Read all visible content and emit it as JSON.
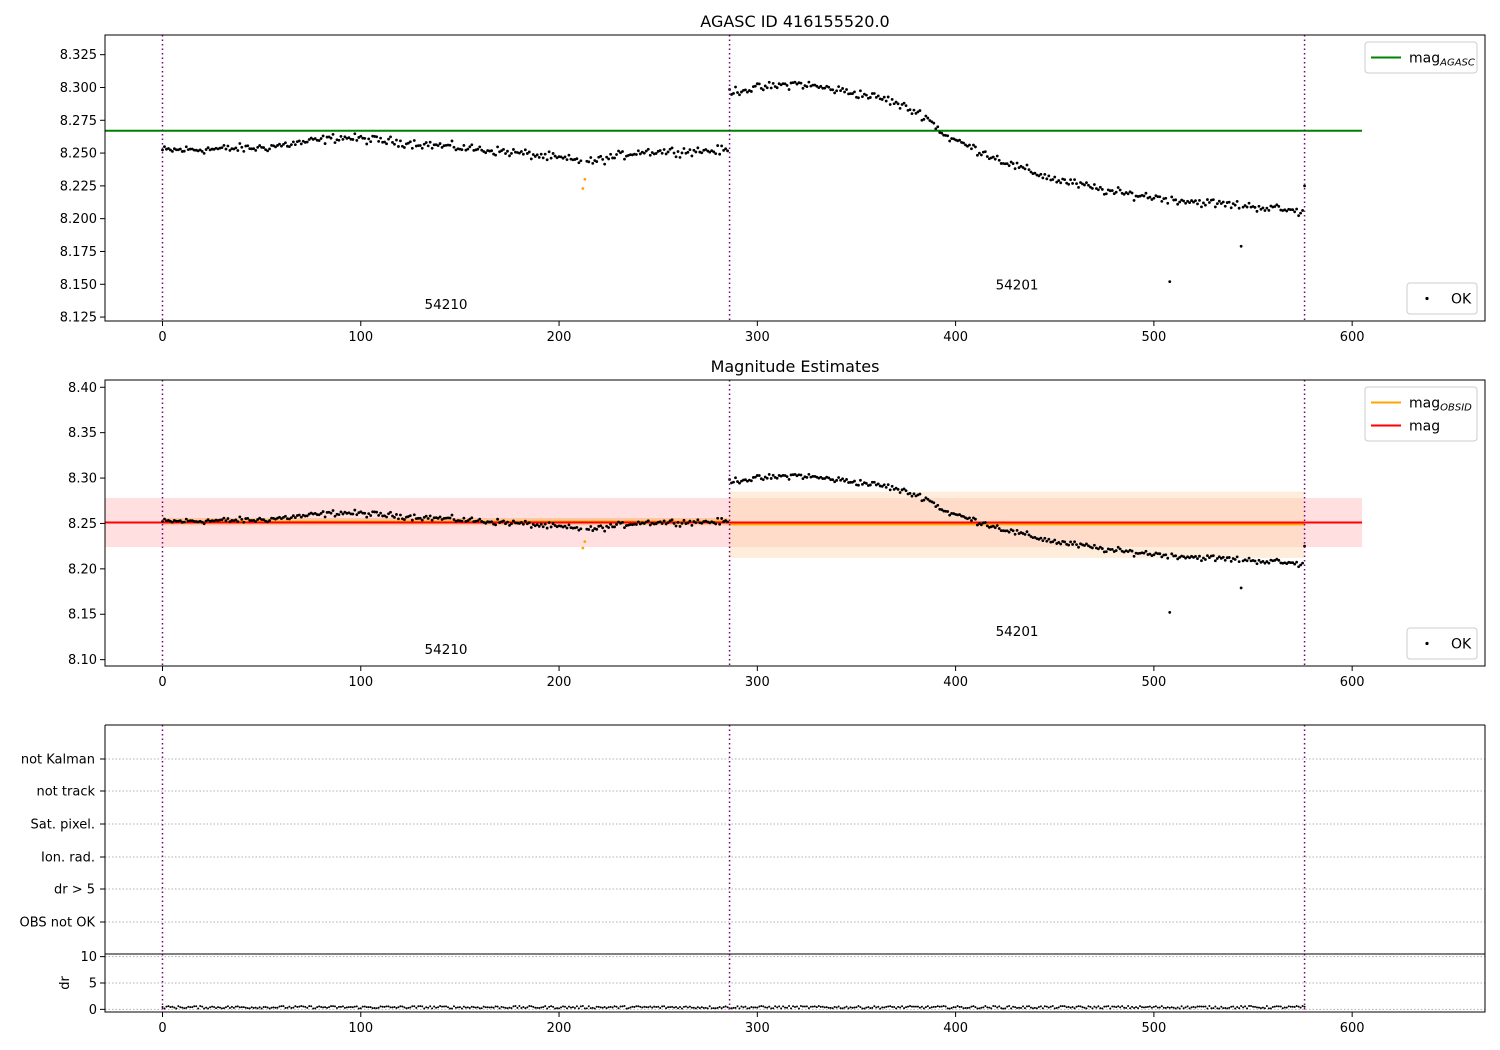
{
  "chart_data": [
    {
      "type": "scatter",
      "title": "AGASC ID 416155520.0",
      "xlabel": "",
      "ylabel": "",
      "xlim": [
        -29,
        667
      ],
      "ylim": [
        8.122,
        8.34
      ],
      "xticks": [
        0,
        100,
        200,
        300,
        400,
        500,
        600
      ],
      "yticks": [
        8.125,
        8.15,
        8.175,
        8.2,
        8.225,
        8.25,
        8.275,
        8.3,
        8.325
      ],
      "ytick_labels": [
        "8.125",
        "8.150",
        "8.175",
        "8.200",
        "8.225",
        "8.250",
        "8.275",
        "8.300",
        "8.325"
      ],
      "obs_boundaries": [
        0,
        286,
        576
      ],
      "annotations": [
        {
          "text": "54210",
          "x": 143,
          "y": 8.131
        },
        {
          "text": "54201",
          "x": 431,
          "y": 8.146
        }
      ],
      "hlines": [
        {
          "name": "mag",
          "subscript": "AGASC",
          "y": 8.267,
          "x0": -29,
          "x1": 605,
          "color": "#008000"
        }
      ],
      "outliers": [
        {
          "x": 212,
          "y": 8.223
        },
        {
          "x": 213,
          "y": 8.23
        },
        {
          "x": 544,
          "y": 8.179
        },
        {
          "x": 508,
          "y": 8.152
        },
        {
          "x": 576,
          "y": 8.225
        }
      ],
      "outlier_color": "#ffa500",
      "outlier_xs": [
        212,
        213
      ],
      "series_segments": [
        {
          "x_start": 0,
          "x_end": 285,
          "y_profile": [
            [
              0,
              8.252
            ],
            [
              50,
              8.254
            ],
            [
              90,
              8.262
            ],
            [
              130,
              8.257
            ],
            [
              180,
              8.25
            ],
            [
              215,
              8.243
            ],
            [
              240,
              8.251
            ],
            [
              285,
              8.252
            ]
          ],
          "scatter": 0.005
        },
        {
          "x_start": 286,
          "x_end": 575,
          "y_profile": [
            [
              286,
              8.297
            ],
            [
              320,
              8.303
            ],
            [
              345,
              8.297
            ],
            [
              365,
              8.291
            ],
            [
              385,
              8.278
            ],
            [
              395,
              8.263
            ],
            [
              410,
              8.253
            ],
            [
              430,
              8.24
            ],
            [
              450,
              8.23
            ],
            [
              480,
              8.22
            ],
            [
              520,
              8.213
            ],
            [
              560,
              8.208
            ],
            [
              575,
              8.205
            ]
          ],
          "scatter": 0.005
        }
      ],
      "legends": [
        {
          "position": "top-right",
          "entries": [
            {
              "label": "mag",
              "subscript": "AGASC",
              "style": "line",
              "color": "#008000"
            }
          ]
        },
        {
          "position": "bottom-right",
          "entries": [
            {
              "label": "OK",
              "style": "marker",
              "color": "#000000"
            }
          ]
        }
      ]
    },
    {
      "type": "scatter",
      "title": "Magnitude Estimates",
      "xlabel": "",
      "ylabel": "",
      "xlim": [
        -29,
        667
      ],
      "ylim": [
        8.093,
        8.408
      ],
      "xticks": [
        0,
        100,
        200,
        300,
        400,
        500,
        600
      ],
      "yticks": [
        8.1,
        8.15,
        8.2,
        8.25,
        8.3,
        8.35,
        8.4
      ],
      "ytick_labels": [
        "8.10",
        "8.15",
        "8.20",
        "8.25",
        "8.30",
        "8.35",
        "8.40"
      ],
      "obs_boundaries": [
        0,
        286,
        576
      ],
      "annotations": [
        {
          "text": "54210",
          "x": 143,
          "y": 8.106
        },
        {
          "text": "54201",
          "x": 431,
          "y": 8.126
        }
      ],
      "bands": [
        {
          "x0": -29,
          "x1": 605,
          "y0": 8.224,
          "y1": 8.278,
          "color": "#ffb0b0",
          "opacity": 0.4
        },
        {
          "x0": 286,
          "x1": 576,
          "y0": 8.212,
          "y1": 8.285,
          "color": "#ffd8b0",
          "opacity": 0.45
        },
        {
          "x0": 0,
          "x1": 286,
          "y0": 8.248,
          "y1": 8.256,
          "color": "#ffb060",
          "opacity": 0.5
        }
      ],
      "hlines": [
        {
          "name": "mag",
          "subscript": "OBSID",
          "y": 8.252,
          "x0": 0,
          "x1": 286,
          "color": "#ffa500"
        },
        {
          "name": "mag",
          "subscript": "OBSID",
          "y": 8.249,
          "x0": 286,
          "x1": 576,
          "color": "#ffa500"
        },
        {
          "name": "mag",
          "y": 8.251,
          "x0": -29,
          "x1": 605,
          "color": "#ff0000"
        }
      ],
      "outlier_xs": [
        212,
        213
      ],
      "outlier_color": "#ffa500",
      "legends": [
        {
          "position": "top-right",
          "entries": [
            {
              "label": "mag",
              "subscript": "OBSID",
              "style": "line",
              "color": "#ffa500"
            },
            {
              "label": "mag",
              "style": "line",
              "color": "#ff0000"
            }
          ]
        },
        {
          "position": "bottom-right",
          "entries": [
            {
              "label": "OK",
              "style": "marker",
              "color": "#000000"
            }
          ]
        }
      ]
    },
    {
      "type": "scatter",
      "title": "",
      "xlabel": "",
      "ylabel": "",
      "xlim": [
        -29,
        667
      ],
      "category_rows": [
        "not Kalman",
        "not track",
        "Sat. pixel.",
        "Ion. rad.",
        "dr > 5",
        "OBS not OK"
      ],
      "obs_boundaries": [
        0,
        286,
        576
      ],
      "flag_points": []
    },
    {
      "type": "line",
      "title": "",
      "xlabel": "",
      "ylabel": "dr",
      "xlim": [
        -29,
        667
      ],
      "ylim": [
        -0.5,
        10.5
      ],
      "xticks": [
        0,
        100,
        200,
        300,
        400,
        500,
        600
      ],
      "yticks": [
        0,
        5,
        10
      ],
      "ytick_labels": [
        "0",
        "5",
        "10"
      ],
      "obs_boundaries": [
        0,
        286,
        576
      ],
      "dr_level": 0.4
    }
  ]
}
